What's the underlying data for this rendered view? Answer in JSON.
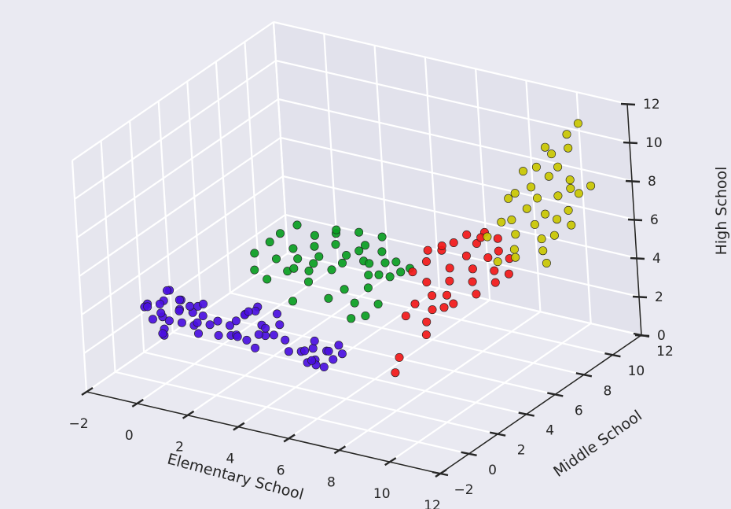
{
  "chart_data": {
    "type": "scatter",
    "projection": "3d",
    "title": "",
    "xlabel": "Elementary School",
    "ylabel": "Middle School",
    "zlabel": "High School",
    "xlim": [
      -2,
      12
    ],
    "ylim": [
      -2,
      12
    ],
    "zlim": [
      0,
      12
    ],
    "xticks": [
      "−2",
      "0",
      "2",
      "4",
      "6",
      "8",
      "10",
      "12"
    ],
    "yticks": [
      "−2",
      "0",
      "2",
      "4",
      "6",
      "8",
      "10",
      "12"
    ],
    "zticks": [
      "0",
      "2",
      "4",
      "6",
      "8",
      "10",
      "12"
    ],
    "grid": true,
    "series": [
      {
        "color": "#4a0fe0",
        "points": [
          [
            0.0,
            -0.9,
            4.6
          ],
          [
            0.3,
            -1.1,
            4.0
          ],
          [
            0.6,
            -0.8,
            4.9
          ],
          [
            0.2,
            -0.4,
            4.4
          ],
          [
            0.8,
            -1.2,
            3.7
          ],
          [
            1.1,
            -0.6,
            4.5
          ],
          [
            1.4,
            -1.0,
            4.1
          ],
          [
            0.5,
            -0.2,
            5.1
          ],
          [
            1.7,
            -0.7,
            3.9
          ],
          [
            1.0,
            -0.3,
            4.8
          ],
          [
            0.9,
            -1.4,
            3.5
          ],
          [
            1.3,
            -0.9,
            5.2
          ],
          [
            1.9,
            -0.4,
            4.3
          ],
          [
            2.1,
            -1.1,
            3.8
          ],
          [
            0.4,
            -0.6,
            3.9
          ],
          [
            1.6,
            -0.2,
            4.6
          ],
          [
            2.4,
            -0.8,
            4.2
          ],
          [
            1.2,
            -1.5,
            4.4
          ],
          [
            0.7,
            -0.7,
            5.4
          ],
          [
            2.0,
            -0.5,
            5.0
          ],
          [
            0.1,
            -0.2,
            3.8
          ],
          [
            1.5,
            -1.3,
            4.9
          ],
          [
            2.3,
            -0.1,
            4.0
          ],
          [
            0.6,
            -1.0,
            3.3
          ],
          [
            1.8,
            -0.9,
            4.7
          ],
          [
            -0.3,
            -0.6,
            4.2
          ],
          [
            2.6,
            -0.6,
            3.6
          ],
          [
            1.1,
            0.1,
            4.3
          ],
          [
            0.3,
            -1.4,
            4.8
          ],
          [
            2.2,
            -1.3,
            4.5
          ],
          [
            3.2,
            -0.8,
            4.4
          ],
          [
            3.6,
            -0.4,
            4.9
          ],
          [
            3.9,
            -0.9,
            3.9
          ],
          [
            4.3,
            -0.5,
            4.6
          ],
          [
            3.4,
            -1.1,
            4.1
          ],
          [
            4.0,
            -0.2,
            5.3
          ],
          [
            4.6,
            -0.8,
            4.3
          ],
          [
            3.7,
            -0.6,
            5.0
          ],
          [
            4.9,
            -0.3,
            4.7
          ],
          [
            3.1,
            -0.2,
            4.3
          ],
          [
            4.4,
            -1.2,
            3.8
          ],
          [
            5.0,
            -0.9,
            4.5
          ],
          [
            3.8,
            -1.4,
            4.4
          ],
          [
            4.7,
            -0.1,
            5.1
          ],
          [
            3.3,
            -0.5,
            3.7
          ],
          [
            4.2,
            -0.7,
            5.4
          ],
          [
            5.2,
            -0.5,
            4.1
          ],
          [
            3.5,
            0.0,
            4.8
          ],
          [
            4.8,
            -1.1,
            4.9
          ],
          [
            4.1,
            -0.4,
            4.0
          ],
          [
            6.0,
            -0.8,
            3.9
          ],
          [
            6.3,
            -0.5,
            4.0
          ],
          [
            6.6,
            -0.9,
            3.7
          ],
          [
            6.9,
            -0.6,
            4.1
          ],
          [
            7.2,
            -0.7,
            3.8
          ],
          [
            6.4,
            -1.1,
            3.6
          ],
          [
            6.8,
            -0.3,
            3.9
          ],
          [
            7.0,
            -1.0,
            3.5
          ],
          [
            6.2,
            -0.2,
            4.2
          ],
          [
            6.5,
            -0.7,
            3.3
          ],
          [
            5.8,
            -1.3,
            4.1
          ],
          [
            7.4,
            -0.4,
            4.0
          ],
          [
            6.7,
            -1.3,
            3.9
          ],
          [
            5.9,
            -0.4,
            3.7
          ],
          [
            7.1,
            -0.1,
            4.2
          ]
        ]
      },
      {
        "color": "#0a9e22",
        "points": [
          [
            2.2,
            2.8,
            6.0
          ],
          [
            2.6,
            3.2,
            6.5
          ],
          [
            3.0,
            2.9,
            5.9
          ],
          [
            3.4,
            3.4,
            6.3
          ],
          [
            2.8,
            3.6,
            6.8
          ],
          [
            3.8,
            3.0,
            6.1
          ],
          [
            4.2,
            3.5,
            6.6
          ],
          [
            3.6,
            2.6,
            5.6
          ],
          [
            4.6,
            3.1,
            6.4
          ],
          [
            5.0,
            3.6,
            6.9
          ],
          [
            4.4,
            2.7,
            5.8
          ],
          [
            5.4,
            3.3,
            6.2
          ],
          [
            5.8,
            3.8,
            6.7
          ],
          [
            5.2,
            2.9,
            6.0
          ],
          [
            6.2,
            3.4,
            6.5
          ],
          [
            6.6,
            3.0,
            6.1
          ],
          [
            6.0,
            3.9,
            7.0
          ],
          [
            7.0,
            3.5,
            6.6
          ],
          [
            7.4,
            3.1,
            6.2
          ],
          [
            6.8,
            2.6,
            5.7
          ],
          [
            4.8,
            4.0,
            7.2
          ],
          [
            3.2,
            4.1,
            7.1
          ],
          [
            2.4,
            2.4,
            5.4
          ],
          [
            5.6,
            4.2,
            7.4
          ],
          [
            6.4,
            4.4,
            7.3
          ],
          [
            4.0,
            3.9,
            6.9
          ],
          [
            3.0,
            2.2,
            5.2
          ],
          [
            4.6,
            2.3,
            5.5
          ],
          [
            5.9,
            2.5,
            5.4
          ],
          [
            6.6,
            4.0,
            6.8
          ],
          [
            7.2,
            3.9,
            6.5
          ],
          [
            7.6,
            3.5,
            6.3
          ],
          [
            5.3,
            2.4,
            4.8
          ],
          [
            6.1,
            2.8,
            4.6
          ],
          [
            6.8,
            2.3,
            4.4
          ],
          [
            7.1,
            2.7,
            4.9
          ],
          [
            6.4,
            2.0,
            4.3
          ],
          [
            4.1,
            2.0,
            4.5
          ],
          [
            3.5,
            3.2,
            5.4
          ],
          [
            5.0,
            3.7,
            7.6
          ],
          [
            6.9,
            3.2,
            6.1
          ],
          [
            7.8,
            3.8,
            6.4
          ],
          [
            5.7,
            3.1,
            6.8
          ],
          [
            4.3,
            3.2,
            5.9
          ],
          [
            6.3,
            3.6,
            6.3
          ]
        ]
      },
      {
        "color": "#f21818",
        "points": [
          [
            8.0,
            4.6,
            6.4
          ],
          [
            8.4,
            5.0,
            6.9
          ],
          [
            8.8,
            4.8,
            6.2
          ],
          [
            9.2,
            5.3,
            6.7
          ],
          [
            8.6,
            5.5,
            7.1
          ],
          [
            9.6,
            5.0,
            6.3
          ],
          [
            9.0,
            4.4,
            5.8
          ],
          [
            10.0,
            5.4,
            6.8
          ],
          [
            9.4,
            5.7,
            7.2
          ],
          [
            8.2,
            4.2,
            5.6
          ],
          [
            10.4,
            5.1,
            6.4
          ],
          [
            9.8,
            4.6,
            5.9
          ],
          [
            8.9,
            5.9,
            7.4
          ],
          [
            10.2,
            5.8,
            7.0
          ],
          [
            9.1,
            4.0,
            5.3
          ],
          [
            7.9,
            4.9,
            6.8
          ],
          [
            10.6,
            4.8,
            6.0
          ],
          [
            9.5,
            6.1,
            7.6
          ],
          [
            8.5,
            4.0,
            5.1
          ],
          [
            10.1,
            4.3,
            5.5
          ],
          [
            8.1,
            3.5,
            4.8
          ],
          [
            8.6,
            3.8,
            4.5
          ],
          [
            9.2,
            3.6,
            4.9
          ],
          [
            8.7,
            3.2,
            4.2
          ],
          [
            9.4,
            3.9,
            5.0
          ],
          [
            8.0,
            3.0,
            4.4
          ],
          [
            8.9,
            2.8,
            3.8
          ],
          [
            8.3,
            1.9,
            2.9
          ],
          [
            8.4,
            1.4,
            2.4
          ],
          [
            9.7,
            5.5,
            7.7
          ],
          [
            10.8,
            5.4,
            6.2
          ],
          [
            9.9,
            6.3,
            7.3
          ],
          [
            8.3,
            5.2,
            7.0
          ],
          [
            7.6,
            4.3,
            5.9
          ],
          [
            10.5,
            6.0,
            6.6
          ]
        ]
      },
      {
        "color": "#c9c700",
        "points": [
          [
            10.2,
            6.8,
            8.1
          ],
          [
            10.6,
            7.2,
            8.6
          ],
          [
            11.0,
            7.0,
            8.0
          ],
          [
            10.8,
            7.6,
            9.0
          ],
          [
            11.2,
            7.4,
            8.4
          ],
          [
            10.4,
            7.9,
            9.3
          ],
          [
            11.4,
            8.0,
            9.1
          ],
          [
            11.6,
            7.5,
            8.2
          ],
          [
            10.9,
            8.3,
            9.8
          ],
          [
            11.8,
            8.2,
            9.5
          ],
          [
            10.1,
            7.3,
            9.2
          ],
          [
            11.1,
            8.6,
            10.2
          ],
          [
            10.5,
            6.5,
            7.6
          ],
          [
            11.3,
            6.9,
            7.4
          ],
          [
            10.7,
            8.9,
            10.6
          ],
          [
            11.5,
            8.7,
            9.6
          ],
          [
            9.9,
            6.6,
            8.0
          ],
          [
            10.3,
            8.5,
            10.0
          ],
          [
            11.7,
            7.1,
            7.6
          ],
          [
            11.9,
            7.8,
            8.6
          ],
          [
            10.0,
            8.1,
            9.9
          ],
          [
            11.2,
            9.2,
            10.9
          ],
          [
            12.0,
            8.4,
            9.2
          ],
          [
            10.6,
            6.2,
            7.0
          ],
          [
            11.0,
            9.5,
            11.4
          ],
          [
            9.7,
            7.5,
            8.7
          ],
          [
            11.5,
            6.6,
            7.0
          ],
          [
            10.4,
            9.0,
            10.8
          ],
          [
            12.1,
            7.6,
            8.0
          ],
          [
            10.8,
            5.9,
            6.8
          ],
          [
            9.6,
            6.1,
            7.4
          ],
          [
            11.3,
            9.8,
            11.9
          ],
          [
            12.2,
            8.9,
            9.4
          ],
          [
            10.2,
            5.7,
            6.5
          ],
          [
            11.8,
            6.3,
            6.6
          ]
        ]
      }
    ]
  }
}
